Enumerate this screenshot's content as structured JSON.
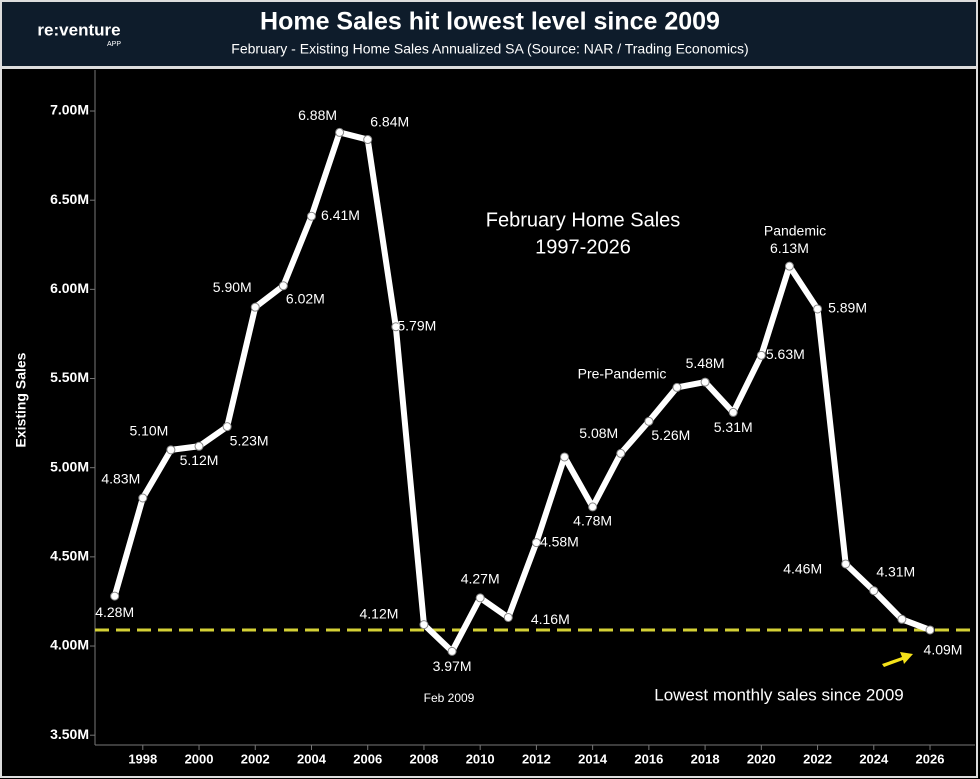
{
  "header": {
    "logo": "re:venture",
    "logo_sub": "APP"
  },
  "chart_data": {
    "type": "line",
    "title": "Home Sales hit lowest level since 2009",
    "subtitle": "February - Existing Home Sales Annualized SA (Source: NAR / Trading Economics)",
    "y_label": "Existing  Sales",
    "x": [
      1997,
      1998,
      1999,
      2000,
      2001,
      2002,
      2003,
      2004,
      2005,
      2006,
      2007,
      2008,
      2009,
      2010,
      2011,
      2012,
      2013,
      2014,
      2015,
      2016,
      2017,
      2018,
      2019,
      2020,
      2021,
      2022,
      2023,
      2024,
      2025,
      2026
    ],
    "values": [
      4.28,
      4.83,
      5.1,
      5.12,
      5.23,
      5.9,
      6.02,
      6.41,
      6.88,
      6.84,
      5.79,
      4.12,
      3.97,
      4.27,
      4.16,
      4.58,
      5.06,
      4.78,
      5.08,
      5.26,
      5.45,
      5.48,
      5.31,
      5.63,
      6.13,
      5.89,
      4.46,
      4.31,
      4.15,
      4.09
    ],
    "value_labels": [
      "4.28M",
      "4.83M",
      "5.10M",
      "5.12M",
      "5.23M",
      "5.90M",
      "6.02M",
      "6.41M",
      "6.88M",
      "6.84M",
      "5.79M",
      "4.12M",
      "3.97M",
      "4.27M",
      "4.16M",
      "4.58M",
      null,
      "4.78M",
      "5.08M",
      "5.26M",
      null,
      "5.48M",
      "5.31M",
      "5.63M",
      "6.13M",
      "5.89M",
      "4.46M",
      "4.31M",
      null,
      "4.09M"
    ],
    "color": "#ffffff",
    "reference_line": 4.09,
    "reference_color": "#d4d136",
    "xlim": [
      1996.3,
      2027.6
    ],
    "xticks": [
      1998,
      2000,
      2002,
      2004,
      2006,
      2008,
      2010,
      2012,
      2014,
      2016,
      2018,
      2020,
      2022,
      2024,
      2026
    ],
    "ylim": [
      3.445,
      7.23
    ],
    "yticks": [
      {
        "value": 3.5,
        "label": "3.50M"
      },
      {
        "value": 4,
        "label": "4.00M"
      },
      {
        "value": 4.5,
        "label": "4.50M"
      },
      {
        "value": 5,
        "label": "5.00M"
      },
      {
        "value": 5.5,
        "label": "5.50M"
      },
      {
        "value": 6,
        "label": "6.00M"
      },
      {
        "value": 6.5,
        "label": "6.50M"
      },
      {
        "value": 7,
        "label": "7.00M"
      }
    ],
    "annotations": [
      "February Home Sales",
      "1997-2026",
      "Pandemic",
      "Pre-Pandemic",
      "Feb 2009",
      "Lowest monthly sales since 2009"
    ]
  }
}
